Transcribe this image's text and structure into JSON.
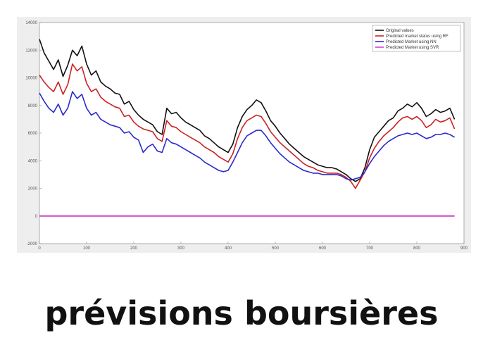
{
  "caption": "prévisions boursières",
  "chart_data": {
    "type": "line",
    "title": "",
    "xlabel": "",
    "ylabel": "",
    "xlim": [
      0,
      900
    ],
    "ylim": [
      -2000,
      14000
    ],
    "xticks": [
      0,
      100,
      200,
      300,
      400,
      500,
      600,
      700,
      800,
      900
    ],
    "yticks": [
      -2000,
      0,
      2000,
      4000,
      6000,
      8000,
      10000,
      12000,
      14000
    ],
    "grid": false,
    "legend_position": "top-right",
    "series": [
      {
        "name": "Original values",
        "color": "#111111",
        "x": [
          0,
          10,
          20,
          30,
          40,
          50,
          60,
          70,
          80,
          90,
          100,
          110,
          120,
          130,
          140,
          150,
          160,
          170,
          180,
          190,
          200,
          210,
          220,
          230,
          240,
          250,
          260,
          270,
          280,
          290,
          300,
          310,
          320,
          330,
          340,
          350,
          360,
          370,
          380,
          390,
          400,
          410,
          420,
          430,
          440,
          450,
          460,
          470,
          480,
          490,
          500,
          510,
          520,
          530,
          540,
          550,
          560,
          570,
          580,
          590,
          600,
          610,
          620,
          630,
          640,
          650,
          660,
          670,
          680,
          690,
          700,
          710,
          720,
          730,
          740,
          750,
          760,
          770,
          780,
          790,
          800,
          810,
          820,
          830,
          840,
          850,
          860,
          870,
          880
        ],
        "y": [
          12800,
          11800,
          11200,
          10600,
          11300,
          10100,
          10900,
          12000,
          11600,
          12300,
          11000,
          10200,
          10500,
          9700,
          9400,
          9200,
          8900,
          8800,
          8100,
          8300,
          7700,
          7300,
          7000,
          6800,
          6600,
          6100,
          5900,
          7800,
          7400,
          7500,
          7100,
          6800,
          6600,
          6400,
          6200,
          5800,
          5600,
          5300,
          5000,
          4800,
          4600,
          5200,
          6400,
          7200,
          7700,
          8000,
          8400,
          8200,
          7600,
          6900,
          6500,
          6000,
          5600,
          5200,
          4900,
          4600,
          4300,
          4100,
          3900,
          3700,
          3600,
          3500,
          3500,
          3400,
          3200,
          3000,
          2700,
          2500,
          2700,
          3500,
          4800,
          5700,
          6100,
          6500,
          6900,
          7100,
          7600,
          7800,
          8100,
          7900,
          8200,
          7800,
          7200,
          7400,
          7700,
          7500,
          7600,
          7800,
          7000
        ]
      },
      {
        "name": "Predicted market status using RF",
        "color": "#cc2222",
        "x": [
          0,
          10,
          20,
          30,
          40,
          50,
          60,
          70,
          80,
          90,
          100,
          110,
          120,
          130,
          140,
          150,
          160,
          170,
          180,
          190,
          200,
          210,
          220,
          230,
          240,
          250,
          260,
          270,
          280,
          290,
          300,
          310,
          320,
          330,
          340,
          350,
          360,
          370,
          380,
          390,
          400,
          410,
          420,
          430,
          440,
          450,
          460,
          470,
          480,
          490,
          500,
          510,
          520,
          530,
          540,
          550,
          560,
          570,
          580,
          590,
          600,
          610,
          620,
          630,
          640,
          650,
          660,
          670,
          680,
          690,
          700,
          710,
          720,
          730,
          740,
          750,
          760,
          770,
          780,
          790,
          800,
          810,
          820,
          830,
          840,
          850,
          860,
          870,
          880
        ],
        "y": [
          10200,
          9700,
          9300,
          9000,
          9700,
          8800,
          9500,
          11000,
          10500,
          10800,
          9600,
          9000,
          9200,
          8600,
          8300,
          8100,
          7900,
          7800,
          7200,
          7300,
          6800,
          6500,
          6300,
          6200,
          6100,
          5600,
          5400,
          6900,
          6500,
          6400,
          6100,
          5900,
          5700,
          5500,
          5300,
          5000,
          4800,
          4600,
          4300,
          4100,
          3900,
          4500,
          5600,
          6400,
          6900,
          7100,
          7300,
          7200,
          6700,
          6100,
          5700,
          5300,
          5000,
          4700,
          4400,
          4100,
          3800,
          3600,
          3500,
          3300,
          3200,
          3100,
          3100,
          3100,
          3000,
          2800,
          2500,
          2000,
          2600,
          3200,
          4200,
          4900,
          5400,
          5800,
          6100,
          6400,
          6800,
          7100,
          7200,
          7000,
          7200,
          6900,
          6400,
          6600,
          7000,
          6800,
          6900,
          7100,
          6300
        ]
      },
      {
        "name": "Predicted Market using NN",
        "color": "#2a2acc",
        "x": [
          0,
          10,
          20,
          30,
          40,
          50,
          60,
          70,
          80,
          90,
          100,
          110,
          120,
          130,
          140,
          150,
          160,
          170,
          180,
          190,
          200,
          210,
          220,
          230,
          240,
          250,
          260,
          270,
          280,
          290,
          300,
          310,
          320,
          330,
          340,
          350,
          360,
          370,
          380,
          390,
          400,
          410,
          420,
          430,
          440,
          450,
          460,
          470,
          480,
          490,
          500,
          510,
          520,
          530,
          540,
          550,
          560,
          570,
          580,
          590,
          600,
          610,
          620,
          630,
          640,
          650,
          660,
          670,
          680,
          690,
          700,
          710,
          720,
          730,
          740,
          750,
          760,
          770,
          780,
          790,
          800,
          810,
          820,
          830,
          840,
          850,
          860,
          870,
          880
        ],
        "y": [
          8900,
          8300,
          7800,
          7500,
          8100,
          7300,
          7800,
          9000,
          8500,
          8800,
          7800,
          7300,
          7500,
          7000,
          6800,
          6600,
          6500,
          6400,
          6000,
          6100,
          5700,
          5500,
          4600,
          5000,
          5200,
          4700,
          4600,
          5600,
          5300,
          5200,
          5000,
          4800,
          4600,
          4400,
          4200,
          3900,
          3700,
          3500,
          3300,
          3200,
          3300,
          3900,
          4600,
          5300,
          5800,
          6000,
          6200,
          6200,
          5800,
          5300,
          4900,
          4500,
          4200,
          3900,
          3700,
          3500,
          3300,
          3200,
          3100,
          3100,
          3000,
          3000,
          3000,
          3000,
          2900,
          2700,
          2600,
          2700,
          2800,
          3200,
          3800,
          4300,
          4700,
          5100,
          5400,
          5600,
          5800,
          5900,
          6000,
          5900,
          6000,
          5800,
          5600,
          5700,
          5900,
          5900,
          6000,
          5900,
          5700
        ]
      },
      {
        "name": "Predicted Market using SVR",
        "color": "#cc44cc",
        "x": [
          0,
          880
        ],
        "y": [
          0,
          0
        ]
      }
    ]
  }
}
